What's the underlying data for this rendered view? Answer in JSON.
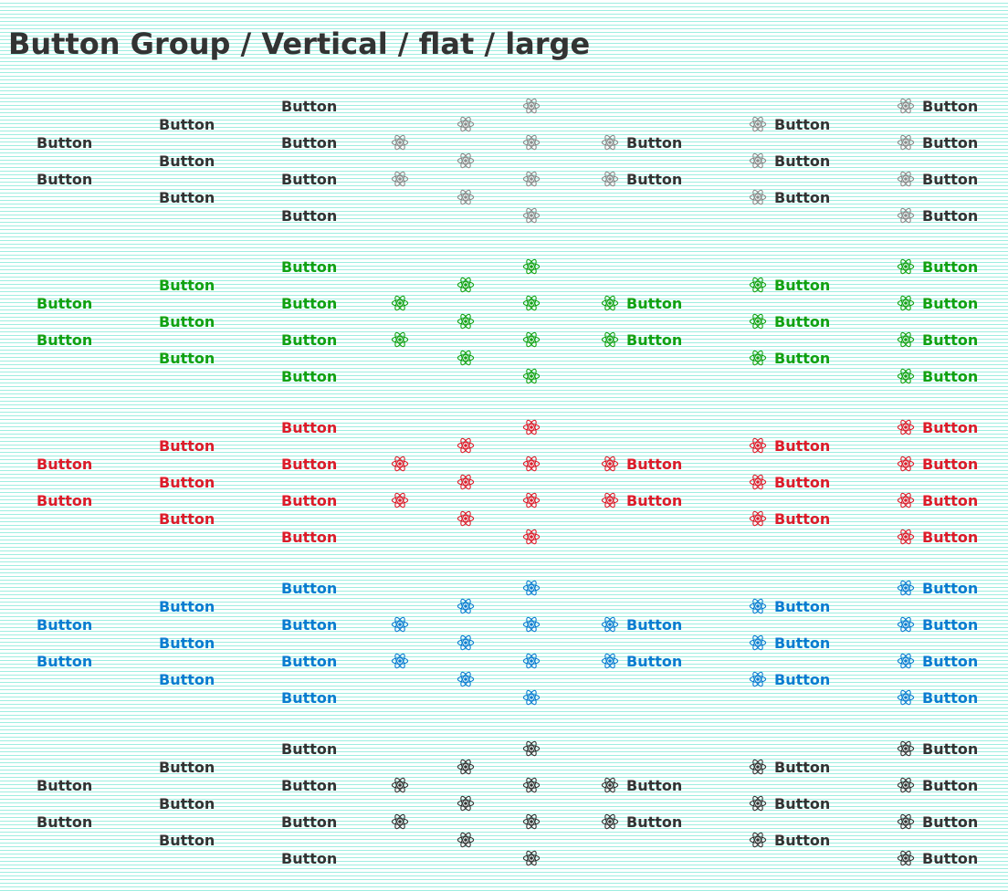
{
  "title": "Button Group / Vertical / flat / large",
  "button_label": "Button",
  "icon": "atom-icon",
  "variants": [
    {
      "name": "default",
      "text_color": "#333333",
      "icon_color": "#8a8a8a"
    },
    {
      "name": "success",
      "text_color": "#12a112",
      "icon_color": "#12a112"
    },
    {
      "name": "danger",
      "text_color": "#dc1c2a",
      "icon_color": "#dc1c2a"
    },
    {
      "name": "primary",
      "text_color": "#0a7cd0",
      "icon_color": "#0a7cd0"
    },
    {
      "name": "dark",
      "text_color": "#333333",
      "icon_color": "#333333"
    }
  ],
  "columns": [
    {
      "mode": "text",
      "count": 2
    },
    {
      "mode": "text",
      "count": 3
    },
    {
      "mode": "text",
      "count": 4
    },
    {
      "mode": "icon",
      "count": 2
    },
    {
      "mode": "icon",
      "count": 3
    },
    {
      "mode": "icon",
      "count": 4
    },
    {
      "mode": "icon-text",
      "count": 2
    },
    {
      "mode": "icon-text",
      "count": 3
    },
    {
      "mode": "icon-text",
      "count": 4
    }
  ]
}
